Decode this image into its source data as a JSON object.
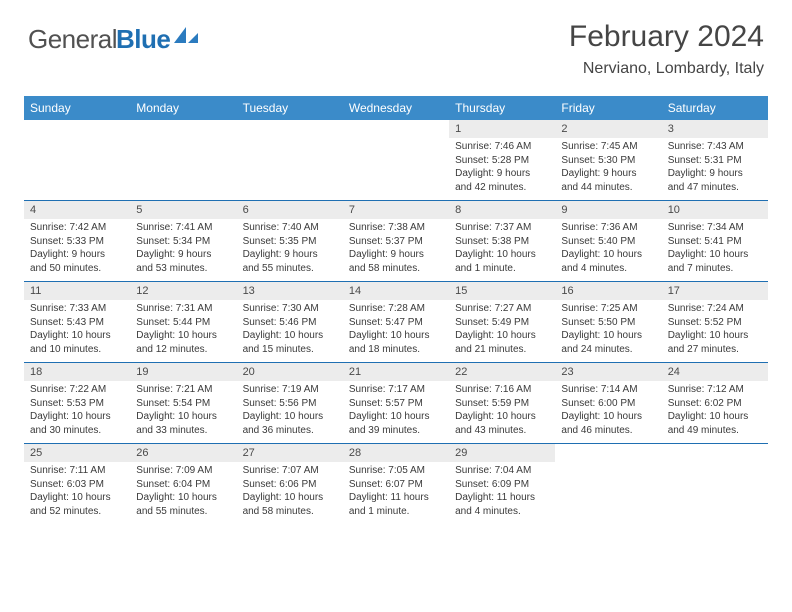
{
  "logo": {
    "word1": "General",
    "word2": "Blue"
  },
  "title": "February 2024",
  "location": "Nerviano, Lombardy, Italy",
  "colors": {
    "header_bg": "#3b8bc9",
    "rule": "#1f6fb2",
    "daynum_bg": "#ececec",
    "text": "#3a3a3a",
    "logo_gray": "#515151",
    "logo_blue": "#1f6fb2"
  },
  "dow": [
    "Sunday",
    "Monday",
    "Tuesday",
    "Wednesday",
    "Thursday",
    "Friday",
    "Saturday"
  ],
  "weeks": [
    [
      null,
      null,
      null,
      null,
      {
        "n": "1",
        "sr": "Sunrise: 7:46 AM",
        "ss": "Sunset: 5:28 PM",
        "dl1": "Daylight: 9 hours",
        "dl2": "and 42 minutes."
      },
      {
        "n": "2",
        "sr": "Sunrise: 7:45 AM",
        "ss": "Sunset: 5:30 PM",
        "dl1": "Daylight: 9 hours",
        "dl2": "and 44 minutes."
      },
      {
        "n": "3",
        "sr": "Sunrise: 7:43 AM",
        "ss": "Sunset: 5:31 PM",
        "dl1": "Daylight: 9 hours",
        "dl2": "and 47 minutes."
      }
    ],
    [
      {
        "n": "4",
        "sr": "Sunrise: 7:42 AM",
        "ss": "Sunset: 5:33 PM",
        "dl1": "Daylight: 9 hours",
        "dl2": "and 50 minutes."
      },
      {
        "n": "5",
        "sr": "Sunrise: 7:41 AM",
        "ss": "Sunset: 5:34 PM",
        "dl1": "Daylight: 9 hours",
        "dl2": "and 53 minutes."
      },
      {
        "n": "6",
        "sr": "Sunrise: 7:40 AM",
        "ss": "Sunset: 5:35 PM",
        "dl1": "Daylight: 9 hours",
        "dl2": "and 55 minutes."
      },
      {
        "n": "7",
        "sr": "Sunrise: 7:38 AM",
        "ss": "Sunset: 5:37 PM",
        "dl1": "Daylight: 9 hours",
        "dl2": "and 58 minutes."
      },
      {
        "n": "8",
        "sr": "Sunrise: 7:37 AM",
        "ss": "Sunset: 5:38 PM",
        "dl1": "Daylight: 10 hours",
        "dl2": "and 1 minute."
      },
      {
        "n": "9",
        "sr": "Sunrise: 7:36 AM",
        "ss": "Sunset: 5:40 PM",
        "dl1": "Daylight: 10 hours",
        "dl2": "and 4 minutes."
      },
      {
        "n": "10",
        "sr": "Sunrise: 7:34 AM",
        "ss": "Sunset: 5:41 PM",
        "dl1": "Daylight: 10 hours",
        "dl2": "and 7 minutes."
      }
    ],
    [
      {
        "n": "11",
        "sr": "Sunrise: 7:33 AM",
        "ss": "Sunset: 5:43 PM",
        "dl1": "Daylight: 10 hours",
        "dl2": "and 10 minutes."
      },
      {
        "n": "12",
        "sr": "Sunrise: 7:31 AM",
        "ss": "Sunset: 5:44 PM",
        "dl1": "Daylight: 10 hours",
        "dl2": "and 12 minutes."
      },
      {
        "n": "13",
        "sr": "Sunrise: 7:30 AM",
        "ss": "Sunset: 5:46 PM",
        "dl1": "Daylight: 10 hours",
        "dl2": "and 15 minutes."
      },
      {
        "n": "14",
        "sr": "Sunrise: 7:28 AM",
        "ss": "Sunset: 5:47 PM",
        "dl1": "Daylight: 10 hours",
        "dl2": "and 18 minutes."
      },
      {
        "n": "15",
        "sr": "Sunrise: 7:27 AM",
        "ss": "Sunset: 5:49 PM",
        "dl1": "Daylight: 10 hours",
        "dl2": "and 21 minutes."
      },
      {
        "n": "16",
        "sr": "Sunrise: 7:25 AM",
        "ss": "Sunset: 5:50 PM",
        "dl1": "Daylight: 10 hours",
        "dl2": "and 24 minutes."
      },
      {
        "n": "17",
        "sr": "Sunrise: 7:24 AM",
        "ss": "Sunset: 5:52 PM",
        "dl1": "Daylight: 10 hours",
        "dl2": "and 27 minutes."
      }
    ],
    [
      {
        "n": "18",
        "sr": "Sunrise: 7:22 AM",
        "ss": "Sunset: 5:53 PM",
        "dl1": "Daylight: 10 hours",
        "dl2": "and 30 minutes."
      },
      {
        "n": "19",
        "sr": "Sunrise: 7:21 AM",
        "ss": "Sunset: 5:54 PM",
        "dl1": "Daylight: 10 hours",
        "dl2": "and 33 minutes."
      },
      {
        "n": "20",
        "sr": "Sunrise: 7:19 AM",
        "ss": "Sunset: 5:56 PM",
        "dl1": "Daylight: 10 hours",
        "dl2": "and 36 minutes."
      },
      {
        "n": "21",
        "sr": "Sunrise: 7:17 AM",
        "ss": "Sunset: 5:57 PM",
        "dl1": "Daylight: 10 hours",
        "dl2": "and 39 minutes."
      },
      {
        "n": "22",
        "sr": "Sunrise: 7:16 AM",
        "ss": "Sunset: 5:59 PM",
        "dl1": "Daylight: 10 hours",
        "dl2": "and 43 minutes."
      },
      {
        "n": "23",
        "sr": "Sunrise: 7:14 AM",
        "ss": "Sunset: 6:00 PM",
        "dl1": "Daylight: 10 hours",
        "dl2": "and 46 minutes."
      },
      {
        "n": "24",
        "sr": "Sunrise: 7:12 AM",
        "ss": "Sunset: 6:02 PM",
        "dl1": "Daylight: 10 hours",
        "dl2": "and 49 minutes."
      }
    ],
    [
      {
        "n": "25",
        "sr": "Sunrise: 7:11 AM",
        "ss": "Sunset: 6:03 PM",
        "dl1": "Daylight: 10 hours",
        "dl2": "and 52 minutes."
      },
      {
        "n": "26",
        "sr": "Sunrise: 7:09 AM",
        "ss": "Sunset: 6:04 PM",
        "dl1": "Daylight: 10 hours",
        "dl2": "and 55 minutes."
      },
      {
        "n": "27",
        "sr": "Sunrise: 7:07 AM",
        "ss": "Sunset: 6:06 PM",
        "dl1": "Daylight: 10 hours",
        "dl2": "and 58 minutes."
      },
      {
        "n": "28",
        "sr": "Sunrise: 7:05 AM",
        "ss": "Sunset: 6:07 PM",
        "dl1": "Daylight: 11 hours",
        "dl2": "and 1 minute."
      },
      {
        "n": "29",
        "sr": "Sunrise: 7:04 AM",
        "ss": "Sunset: 6:09 PM",
        "dl1": "Daylight: 11 hours",
        "dl2": "and 4 minutes."
      },
      null,
      null
    ]
  ]
}
